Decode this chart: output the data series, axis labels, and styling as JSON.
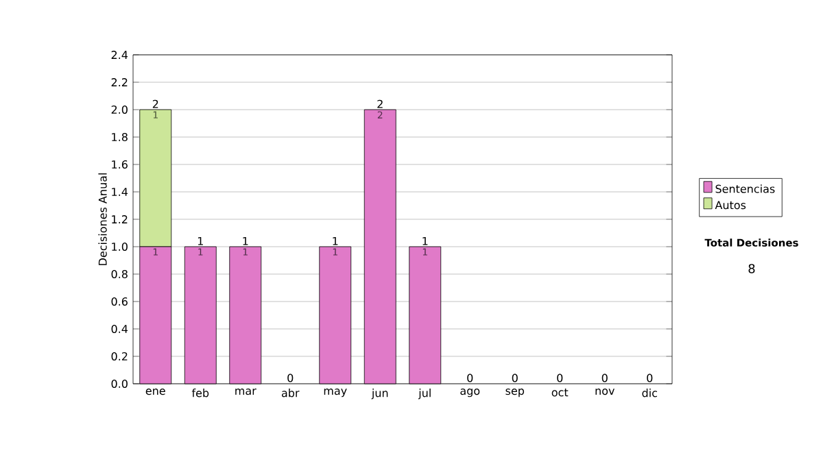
{
  "chart_data": {
    "type": "bar",
    "stacked": true,
    "ylabel": "Decisiones Anual",
    "categories": [
      "ene",
      "feb",
      "mar",
      "abr",
      "may",
      "jun",
      "jul",
      "ago",
      "sep",
      "oct",
      "nov",
      "dic"
    ],
    "series": [
      {
        "name": "Sentencias",
        "color": "#e07ac8",
        "values": [
          1,
          1,
          1,
          0,
          1,
          2,
          1,
          0,
          0,
          0,
          0,
          0
        ],
        "value_labels": [
          "1",
          "1",
          "1",
          null,
          "1",
          "2",
          "1",
          null,
          null,
          null,
          null,
          null
        ]
      },
      {
        "name": "Autos",
        "color": "#cce699",
        "values": [
          1,
          0,
          0,
          0,
          0,
          0,
          0,
          0,
          0,
          0,
          0,
          0
        ],
        "value_labels": [
          "1",
          null,
          null,
          null,
          null,
          null,
          null,
          null,
          null,
          null,
          null,
          null
        ]
      }
    ],
    "totals": [
      "2",
      "1",
      "1",
      "0",
      "1",
      "2",
      "1",
      "0",
      "0",
      "0",
      "0",
      "0"
    ],
    "ylim": [
      0,
      2.4
    ],
    "yticks": [
      {
        "value": 0,
        "label": "0.0"
      },
      {
        "value": 0.2,
        "label": "0.2"
      },
      {
        "value": 0.4,
        "label": "0.4"
      },
      {
        "value": 0.6,
        "label": "0.6"
      },
      {
        "value": 0.8,
        "label": "0.8"
      },
      {
        "value": 1,
        "label": "1.0"
      },
      {
        "value": 1.2,
        "label": "1.2"
      },
      {
        "value": 1.4,
        "label": "1.4"
      },
      {
        "value": 1.6,
        "label": "1.6"
      },
      {
        "value": 1.8,
        "label": "1.8"
      },
      {
        "value": 2,
        "label": "2.0"
      },
      {
        "value": 2.2,
        "label": "2.2"
      },
      {
        "value": 2.4,
        "label": "2.4"
      }
    ],
    "grid": "y",
    "legend": "right",
    "annotations": [
      "Total Decisiones",
      "8"
    ]
  }
}
